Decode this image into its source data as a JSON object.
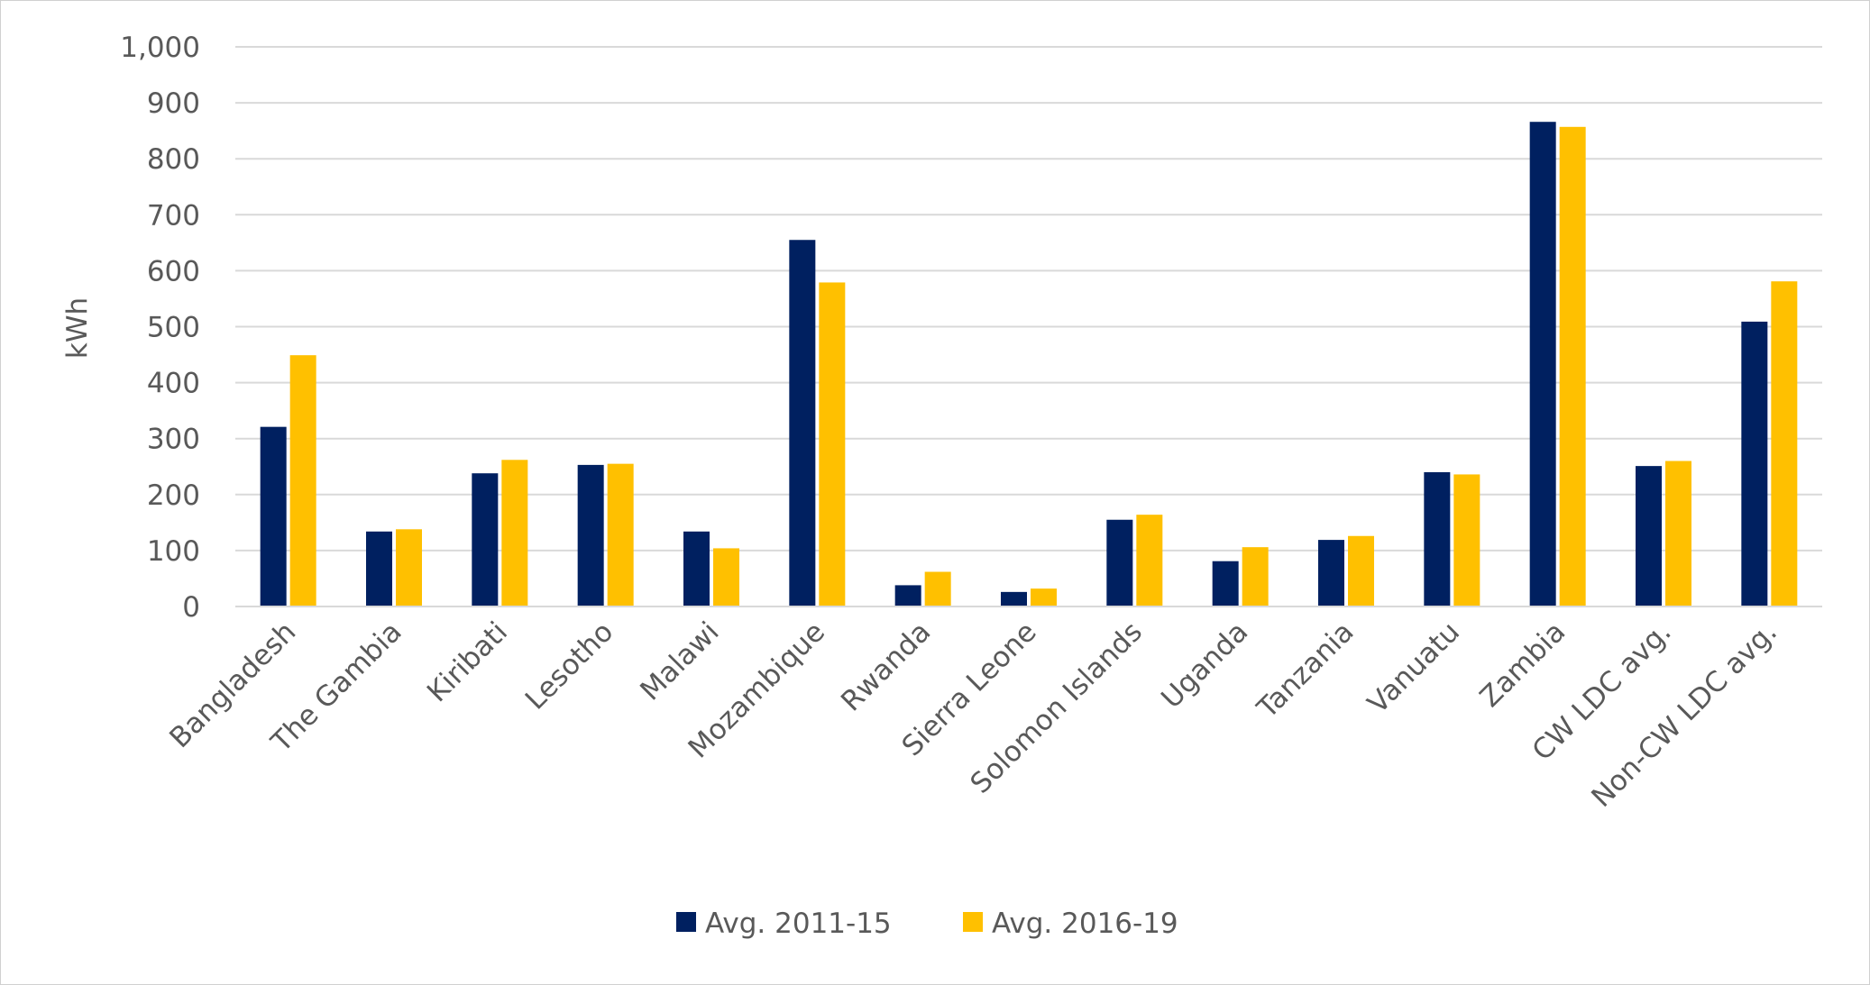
{
  "chart_data": {
    "type": "bar",
    "title": "",
    "xlabel": "",
    "ylabel": "kWh",
    "ylim": [
      0,
      1000
    ],
    "yticks": [
      "0",
      "100",
      "200",
      "300",
      "400",
      "500",
      "600",
      "700",
      "800",
      "900",
      "1,000"
    ],
    "grid": true,
    "legend_position": "bottom",
    "categories": [
      "Bangladesh",
      "The Gambia",
      "Kiribati",
      "Lesotho",
      "Malawi",
      "Mozambique",
      "Rwanda",
      "Sierra Leone",
      "Solomon Islands",
      "Uganda",
      "Tanzania",
      "Vanuatu",
      "Zambia",
      "CW LDC avg.",
      "Non-CW LDC avg."
    ],
    "series": [
      {
        "name": "Avg. 2011-15",
        "color": "#002060",
        "values": [
          321,
          134,
          238,
          253,
          134,
          655,
          38,
          26,
          155,
          81,
          119,
          240,
          866,
          251,
          509
        ]
      },
      {
        "name": "Avg. 2016-19",
        "color": "#FFC000",
        "values": [
          449,
          138,
          262,
          255,
          104,
          579,
          62,
          32,
          164,
          106,
          126,
          236,
          857,
          260,
          581
        ]
      }
    ]
  }
}
